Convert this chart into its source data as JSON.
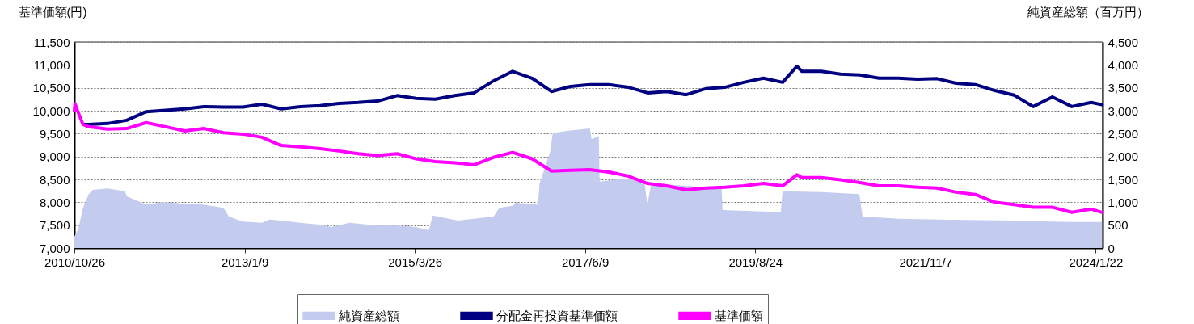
{
  "chart_data": {
    "type": "line",
    "ylabel": "基準価額(円)",
    "y2label": "純資産総額（百万円）",
    "xlim": [
      "2010-10-26",
      "2024-02-24"
    ],
    "xticks": [
      {
        "value": "2010-10-26",
        "label": "2010/10/26"
      },
      {
        "value": "2013-01-09",
        "label": "2013/1/9"
      },
      {
        "value": "2015-03-26",
        "label": "2015/3/26"
      },
      {
        "value": "2017-06-09",
        "label": "2017/6/9"
      },
      {
        "value": "2019-08-24",
        "label": "2019/8/24"
      },
      {
        "value": "2021-11-07",
        "label": "2021/11/7"
      },
      {
        "value": "2024-01-22",
        "label": "2024/1/22"
      }
    ],
    "ylim": [
      7000,
      11500
    ],
    "yticks": [
      {
        "value": 7000,
        "label": "7,000"
      },
      {
        "value": 7500,
        "label": "7,500"
      },
      {
        "value": 8000,
        "label": "8,000"
      },
      {
        "value": 8500,
        "label": "8,500"
      },
      {
        "value": 9000,
        "label": "9,000"
      },
      {
        "value": 9500,
        "label": "9,500"
      },
      {
        "value": 10000,
        "label": "10,000"
      },
      {
        "value": 10500,
        "label": "10,500"
      },
      {
        "value": 11000,
        "label": "11,000"
      },
      {
        "value": 11500,
        "label": "11,500"
      }
    ],
    "y2lim": [
      0,
      4500
    ],
    "y2ticks": [
      0,
      500,
      {
        "value": 1000,
        "label": "1,000"
      },
      {
        "value": 1500,
        "label": "1,500"
      },
      {
        "value": 2000,
        "label": "2,000"
      },
      {
        "value": 2500,
        "label": "2,500"
      },
      {
        "value": 3000,
        "label": "3,000"
      },
      {
        "value": 3500,
        "label": "3,500"
      },
      {
        "value": 4000,
        "label": "4,000"
      },
      {
        "value": 4500,
        "label": "4,500"
      }
    ],
    "grid": "y",
    "legend": "bottom",
    "series": [
      {
        "name": "純資産総額",
        "type": "area",
        "axis": "y2",
        "color": "#c3cbee",
        "x": [
          "2010-10-26",
          "2010-11-14",
          "2010-12-06",
          "2011-01-02",
          "2011-01-21",
          "2011-03-31",
          "2011-06-23",
          "2011-07-01",
          "2011-10-01",
          "2011-12-13",
          "2012-03-30",
          "2012-06-23",
          "2012-10-01",
          "2012-10-27",
          "2012-12-31",
          "2013-04-02",
          "2013-05-06",
          "2013-07-02",
          "2013-09-29",
          "2013-12-30",
          "2014-02-25",
          "2014-05-20",
          "2014-10-02",
          "2015-01-02",
          "2015-03-31",
          "2015-05-31",
          "2015-06-19",
          "2015-10-16",
          "2016-04-02",
          "2016-04-29",
          "2016-07-02",
          "2016-07-14",
          "2016-10-29",
          "2016-11-06",
          "2016-12-26",
          "2017-01-07",
          "2017-03-13",
          "2017-07-02",
          "2017-07-10",
          "2017-08-13",
          "2017-08-17",
          "2017-11-05",
          "2018-03-16",
          "2018-03-31",
          "2018-04-19",
          "2018-10-01",
          "2019-03-18",
          "2019-03-22",
          "2019-09-30",
          "2019-12-23",
          "2019-12-31",
          "2020-07-02",
          "2020-12-29",
          "2021-01-13",
          "2021-07-01",
          "2021-12-31",
          "2022-12-30",
          "2023-09-28",
          "2024-02-21"
        ],
        "values": [
          250,
          420,
          880,
          1180,
          1270,
          1300,
          1240,
          1130,
          950,
          1000,
          970,
          950,
          880,
          690,
          580,
          550,
          620,
          600,
          550,
          510,
          460,
          550,
          490,
          490,
          460,
          390,
          710,
          600,
          690,
          880,
          920,
          990,
          950,
          1410,
          2100,
          2510,
          2560,
          2610,
          2380,
          2450,
          1450,
          1500,
          1500,
          950,
          1410,
          1360,
          1300,
          830,
          800,
          780,
          1240,
          1220,
          1180,
          690,
          640,
          620,
          600,
          570,
          570
        ]
      },
      {
        "name": "分配金再投資基準価額",
        "type": "line",
        "axis": "y",
        "color": "#000080",
        "x": [
          "2010-12-06",
          "2011-01-01",
          "2011-04-01",
          "2011-07-01",
          "2011-10-01",
          "2012-01-01",
          "2012-04-01",
          "2012-07-01",
          "2012-10-01",
          "2013-01-01",
          "2013-04-01",
          "2013-07-01",
          "2013-10-01",
          "2014-01-01",
          "2014-04-01",
          "2014-07-01",
          "2014-10-01",
          "2015-01-01",
          "2015-04-01",
          "2015-07-01",
          "2015-10-01",
          "2016-01-01",
          "2016-04-01",
          "2016-07-01",
          "2016-10-01",
          "2017-01-01",
          "2017-04-01",
          "2017-07-01",
          "2017-10-01",
          "2018-01-01",
          "2018-04-01",
          "2018-07-01",
          "2018-10-01",
          "2019-01-01",
          "2019-04-01",
          "2019-07-01",
          "2019-10-01",
          "2020-01-01",
          "2020-03-08",
          "2020-04-01",
          "2020-07-01",
          "2020-10-01",
          "2021-01-01",
          "2021-04-01",
          "2021-07-01",
          "2021-10-01",
          "2022-01-01",
          "2022-04-01",
          "2022-07-01",
          "2022-10-01",
          "2023-01-01",
          "2023-04-01",
          "2023-07-01",
          "2023-10-01",
          "2024-01-01",
          "2024-02-21"
        ],
        "values": [
          9700,
          9700,
          9720,
          9790,
          9980,
          10010,
          10040,
          10090,
          10080,
          10080,
          10140,
          10040,
          10090,
          10110,
          10160,
          10180,
          10210,
          10330,
          10270,
          10250,
          10330,
          10390,
          10650,
          10860,
          10710,
          10420,
          10530,
          10570,
          10570,
          10510,
          10390,
          10420,
          10350,
          10480,
          10510,
          10620,
          10710,
          10620,
          10970,
          10860,
          10860,
          10800,
          10780,
          10710,
          10710,
          10690,
          10700,
          10600,
          10570,
          10440,
          10340,
          10090,
          10300,
          10090,
          10180,
          10130
        ]
      },
      {
        "name": "基準価額",
        "type": "line",
        "axis": "y",
        "color": "#ff00ff",
        "x": [
          "2010-10-26",
          "2010-10-29",
          "2010-11-14",
          "2010-12-06",
          "2011-01-01",
          "2011-04-01",
          "2011-07-01",
          "2011-10-01",
          "2012-01-01",
          "2012-04-01",
          "2012-07-01",
          "2012-10-01",
          "2013-01-01",
          "2013-04-01",
          "2013-07-01",
          "2013-10-01",
          "2014-01-01",
          "2014-04-01",
          "2014-07-01",
          "2014-10-01",
          "2015-01-01",
          "2015-04-01",
          "2015-07-01",
          "2015-10-01",
          "2016-01-01",
          "2016-04-01",
          "2016-07-01",
          "2016-10-01",
          "2017-01-01",
          "2017-04-01",
          "2017-07-01",
          "2017-10-01",
          "2018-01-01",
          "2018-04-01",
          "2018-07-01",
          "2018-10-01",
          "2019-01-01",
          "2019-04-01",
          "2019-07-01",
          "2019-10-01",
          "2020-01-01",
          "2020-03-08",
          "2020-04-01",
          "2020-07-01",
          "2020-10-01",
          "2021-01-01",
          "2021-04-01",
          "2021-07-01",
          "2021-10-01",
          "2022-01-01",
          "2022-04-01",
          "2022-07-01",
          "2022-10-01",
          "2023-01-01",
          "2023-04-01",
          "2023-07-01",
          "2023-10-01",
          "2024-01-01",
          "2024-02-21"
        ],
        "values": [
          10000,
          10150,
          9950,
          9700,
          9650,
          9600,
          9610,
          9740,
          9650,
          9560,
          9610,
          9520,
          9490,
          9420,
          9240,
          9210,
          9170,
          9120,
          9060,
          9020,
          9060,
          8950,
          8890,
          8860,
          8820,
          8980,
          9090,
          8950,
          8680,
          8700,
          8710,
          8660,
          8570,
          8410,
          8360,
          8270,
          8310,
          8330,
          8360,
          8410,
          8360,
          8600,
          8540,
          8540,
          8490,
          8430,
          8360,
          8360,
          8330,
          8310,
          8220,
          8170,
          8000,
          7950,
          7890,
          7890,
          7780,
          7850,
          7780
        ]
      }
    ]
  }
}
